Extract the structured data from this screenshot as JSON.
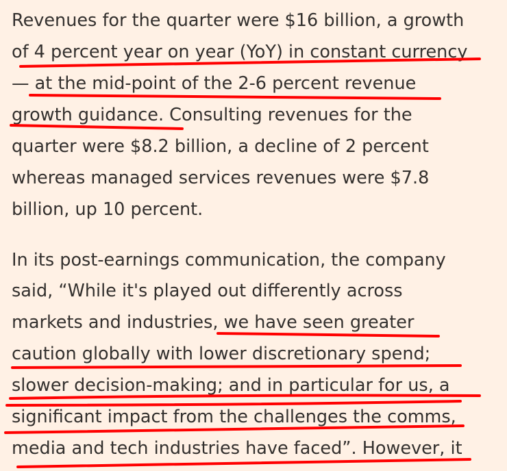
{
  "article": {
    "paragraph_1": {
      "lines": [
        "Revenues for the quarter were $16 billion, a growth",
        "of 4 percent year on year (YoY) in constant currency",
        "— at the mid-point of the 2-6 percent revenue",
        "growth guidance. Consulting revenues for the",
        "quarter were $8.2 billion, a decline of 2 percent",
        "whereas managed services revenues were $7.8",
        "billion, up 10 percent."
      ]
    },
    "paragraph_2": {
      "lines": [
        "In its post-earnings communication, the company",
        "said, “While it's played out differently across",
        "markets and industries, we have seen greater",
        "caution globally with lower discretionary spend;",
        "slower decision-making; and in particular for us, a",
        "significant impact from the challenges the comms,",
        "media and tech industries have faced”. However, it"
      ]
    }
  },
  "annotation_color": "#ff0000",
  "background_color": "#fff1e5",
  "text_color": "#33302e"
}
